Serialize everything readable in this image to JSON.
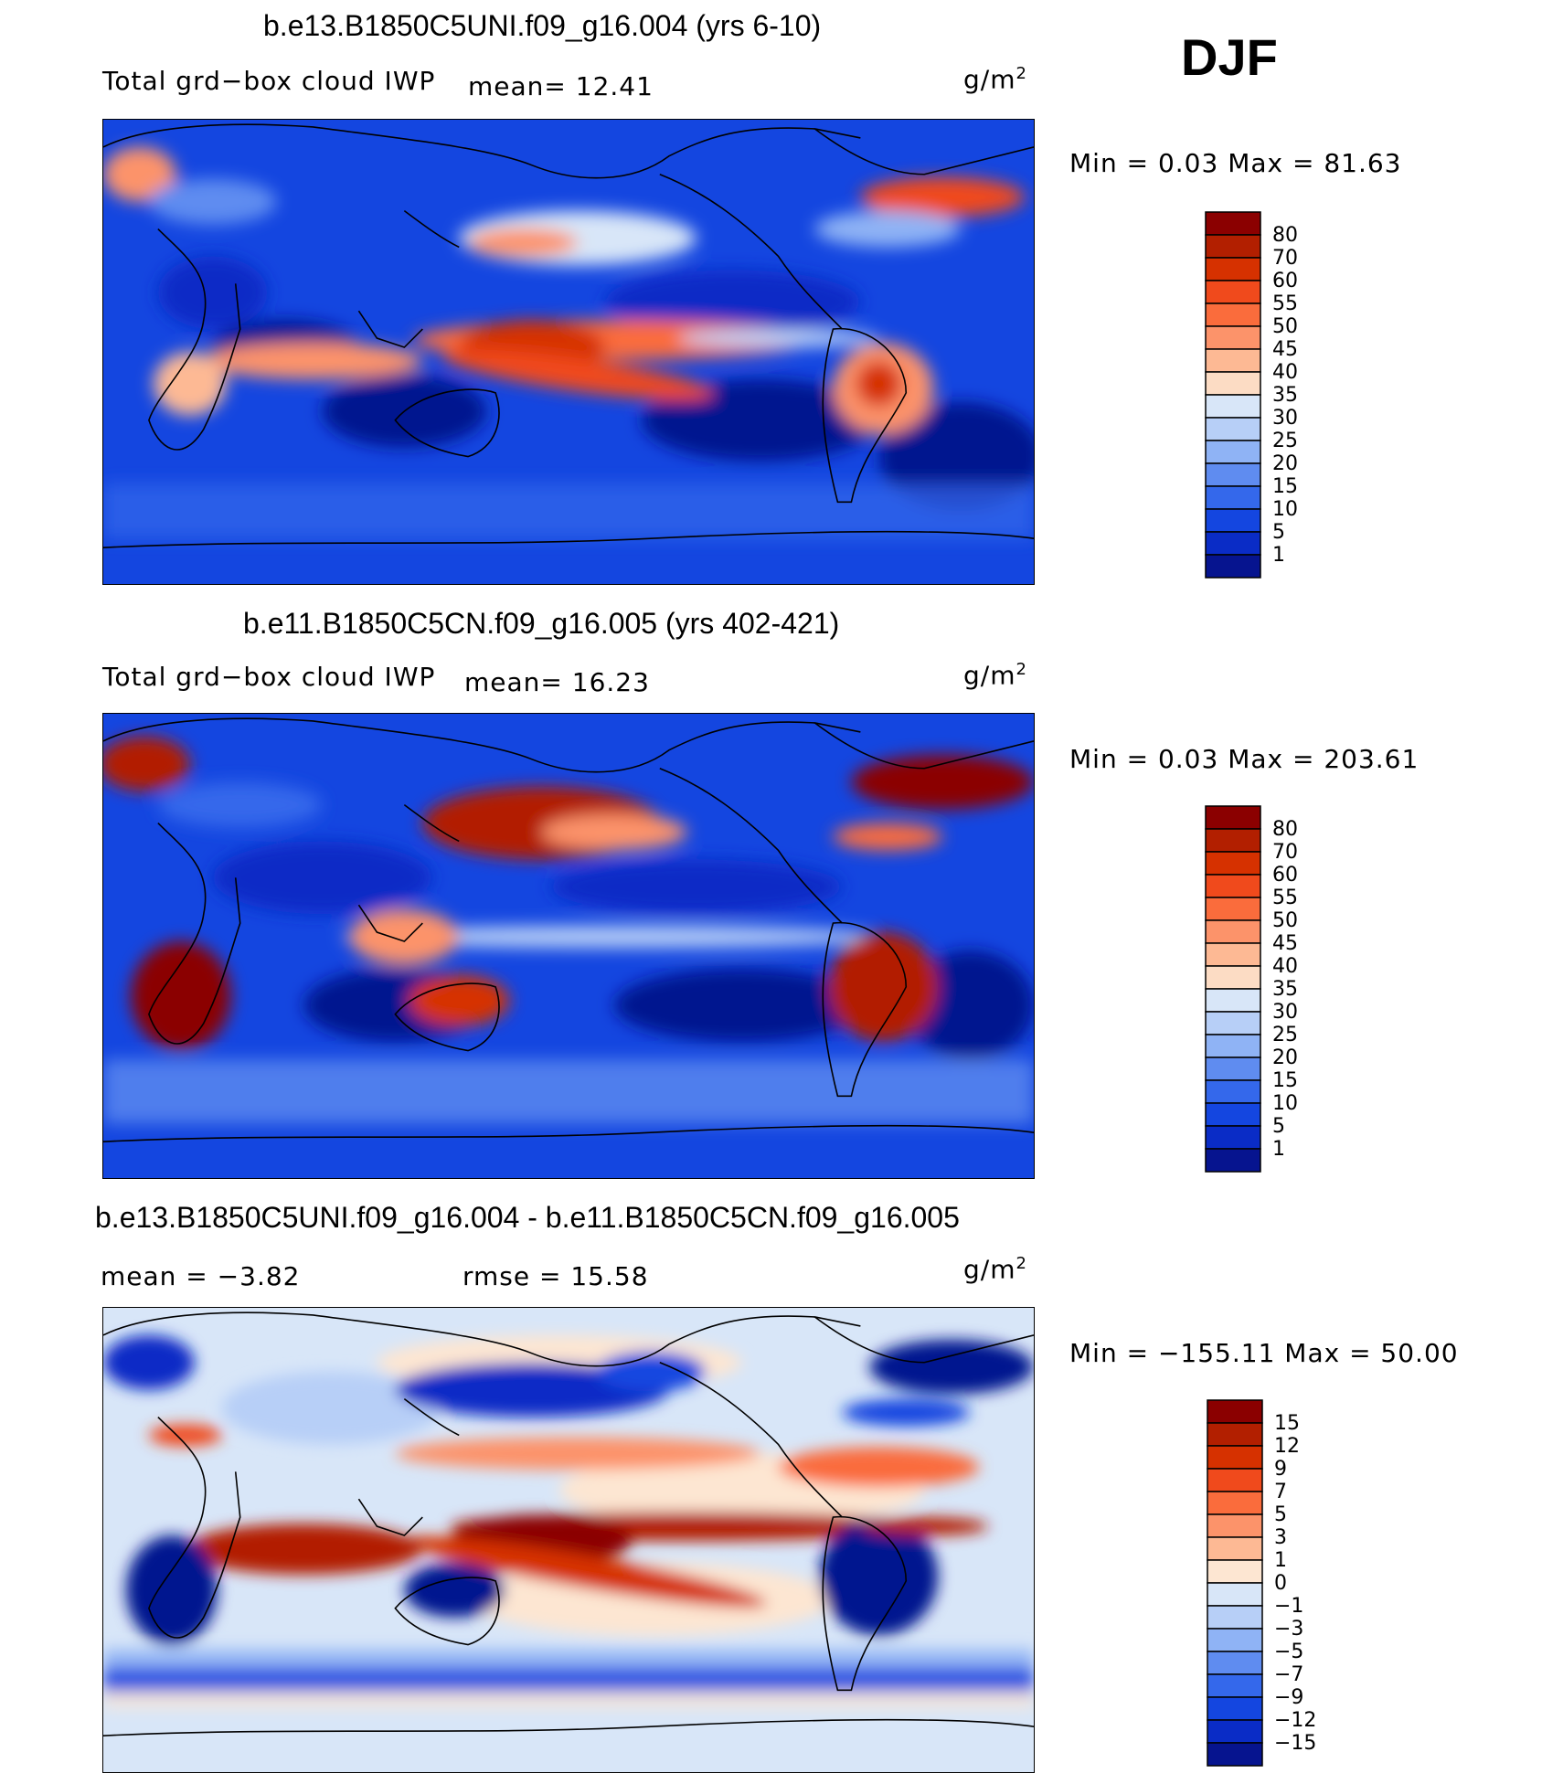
{
  "season": "DJF",
  "units": "g/m",
  "units_sup": "2",
  "panels": [
    {
      "title": "b.e13.B1850C5UNI.f09_g16.004 (yrs 6-10)",
      "left_text": "Total grd−box cloud IWP",
      "stat_text": "mean=   12.41",
      "minmax": "Min  =     0.03  Max  =   81.63",
      "levels": [
        "80",
        "70",
        "60",
        "55",
        "50",
        "45",
        "40",
        "35",
        "30",
        "25",
        "20",
        "15",
        "10",
        "5",
        "1"
      ],
      "colors": [
        "#8b0000",
        "#b21f00",
        "#d63100",
        "#f04a1c",
        "#fa6c3c",
        "#fc936a",
        "#fdb994",
        "#fcdcc4",
        "#d8e6f8",
        "#b7cff7",
        "#8fb3f5",
        "#5f8cf0",
        "#3468eb",
        "#1446e0",
        "#0a2cc6",
        "#06148f"
      ]
    },
    {
      "title": "b.e11.B1850C5CN.f09_g16.005 (yrs 402-421)",
      "left_text": "Total grd−box cloud IWP",
      "stat_text": "mean=   16.23",
      "minmax": "Min  =     0.03  Max  =  203.61",
      "levels": [
        "80",
        "70",
        "60",
        "55",
        "50",
        "45",
        "40",
        "35",
        "30",
        "25",
        "20",
        "15",
        "10",
        "5",
        "1"
      ],
      "colors": [
        "#8b0000",
        "#b21f00",
        "#d63100",
        "#f04a1c",
        "#fa6c3c",
        "#fc936a",
        "#fdb994",
        "#fcdcc4",
        "#d8e6f8",
        "#b7cff7",
        "#8fb3f5",
        "#5f8cf0",
        "#3468eb",
        "#1446e0",
        "#0a2cc6",
        "#06148f"
      ]
    },
    {
      "title": "b.e13.B1850C5UNI.f09_g16.004 - b.e11.B1850C5CN.f09_g16.005",
      "left_text": "mean  =   −3.82",
      "stat_text": "rmse  =    15.58",
      "minmax": "Min  = −155.11  Max  =    50.00",
      "levels": [
        "15",
        "12",
        "9",
        "7",
        "5",
        "3",
        "1",
        "0",
        "−1",
        "−3",
        "−5",
        "−7",
        "−9",
        "−12",
        "−15"
      ],
      "colors": [
        "#8b0000",
        "#b21f00",
        "#d63100",
        "#f04a1c",
        "#fa6c3c",
        "#fc936a",
        "#fdb994",
        "#fde6d2",
        "#d8e6f8",
        "#b7cff7",
        "#8fb3f5",
        "#5f8cf0",
        "#3468eb",
        "#1446e0",
        "#0a2cc6",
        "#06148f"
      ]
    }
  ]
}
